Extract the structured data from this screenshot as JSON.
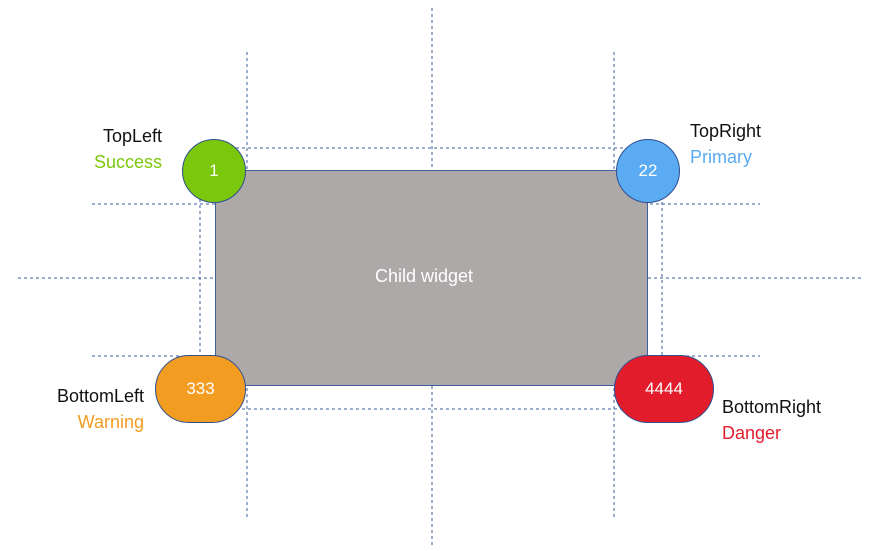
{
  "child_widget": {
    "label": "Child widget",
    "fill_color": "#ada9a8"
  },
  "corners": {
    "top_left": {
      "name": "TopLeft",
      "variant": "Success",
      "badge_text": "1",
      "color": "#7ac70c",
      "label_color": "#7ac70c"
    },
    "top_right": {
      "name": "TopRight",
      "variant": "Primary",
      "badge_text": "22",
      "color": "#5aabf2",
      "label_color": "#5aabf2"
    },
    "bottom_left": {
      "name": "BottomLeft",
      "variant": "Warning",
      "badge_text": "333",
      "color": "#f39c22",
      "label_color": "#f39c22"
    },
    "bottom_right": {
      "name": "BottomRight",
      "variant": "Danger",
      "badge_text": "4444",
      "color": "#e31c2c",
      "label_color": "#e31c2c"
    }
  },
  "guide_color": "#3f5f9e"
}
